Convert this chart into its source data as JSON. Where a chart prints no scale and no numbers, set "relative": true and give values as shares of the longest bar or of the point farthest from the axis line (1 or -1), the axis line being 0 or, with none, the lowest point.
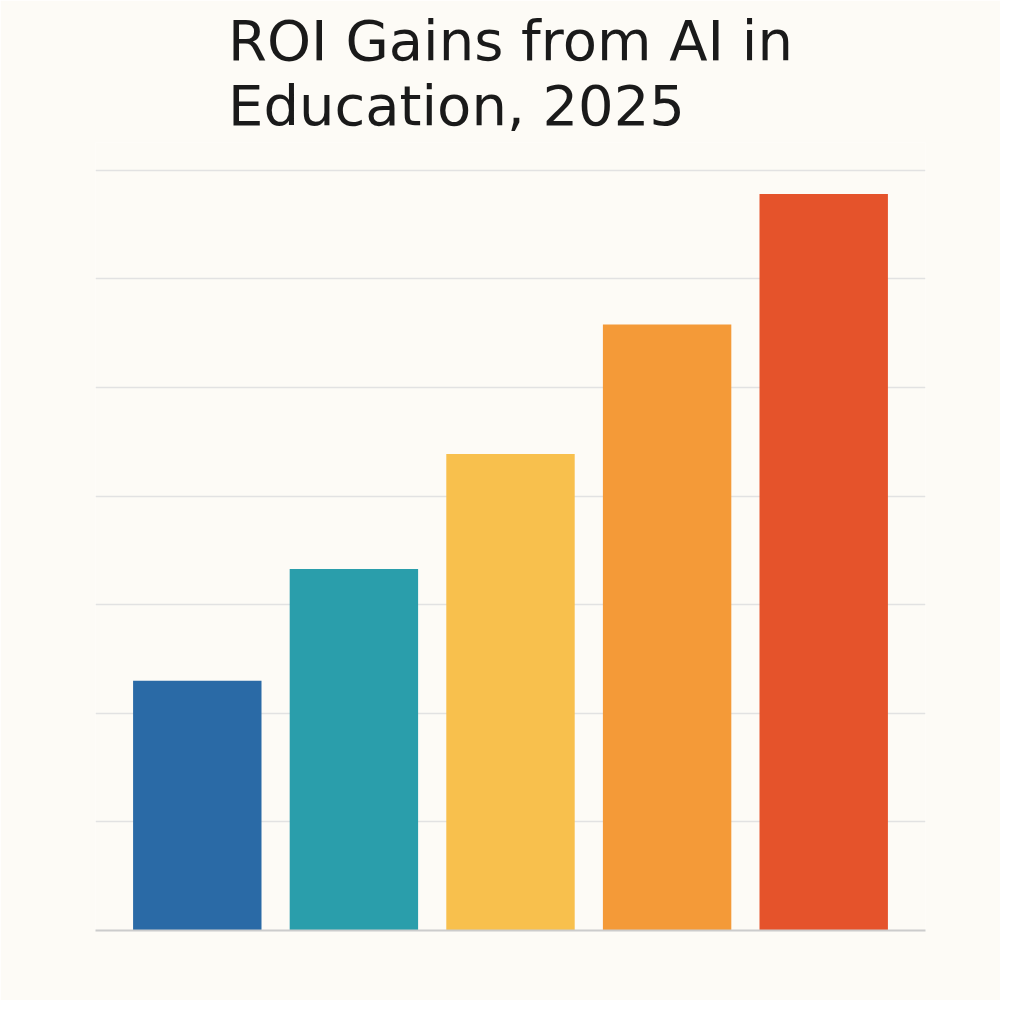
{
  "chart_data": {
    "type": "bar",
    "title": "ROI Gains from AI in Education, 2025",
    "relative": true,
    "grid": "y",
    "categories": [
      null,
      null,
      null,
      null,
      null
    ],
    "values": [
      0.339,
      0.491,
      0.647,
      0.823,
      1
    ],
    "colors": [
      "#2a6aa6",
      "#2a9eab",
      "#f8c04d",
      "#f49a38",
      "#e5532b"
    ]
  }
}
